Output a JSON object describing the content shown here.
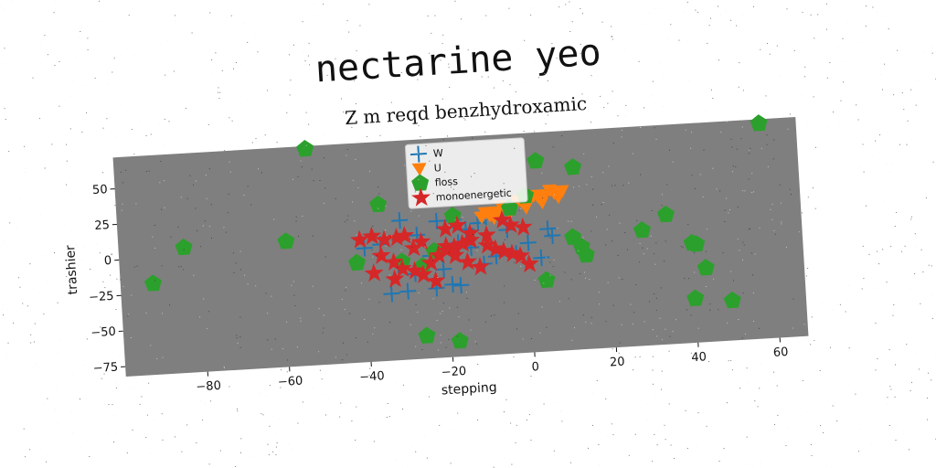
{
  "chart_data": {
    "type": "scatter",
    "suptitle": "nectarine yeo",
    "title": "Z m reqd benzhydroxamic",
    "xlabel": "stepping",
    "ylabel": "trashier",
    "xlim": [
      -100,
      67
    ],
    "ylim": [
      -82,
      72
    ],
    "xticks": [
      -80,
      -60,
      -40,
      -20,
      0,
      20,
      40,
      60
    ],
    "yticks": [
      -75,
      -50,
      -25,
      0,
      25,
      50
    ],
    "grid": false,
    "legend_position": "top-center",
    "background_color": "#7f7f7f",
    "series": [
      {
        "name": "W",
        "marker": "plus",
        "color": "#1f77b4",
        "points": [
          [
            -40,
            -2
          ],
          [
            -36,
            0
          ],
          [
            -31,
            16
          ],
          [
            -32,
            -15
          ],
          [
            -34,
            -35
          ],
          [
            -30,
            -34
          ],
          [
            -23,
            -33
          ],
          [
            -19,
            -31
          ],
          [
            -17,
            -32
          ],
          [
            -22,
            14
          ],
          [
            -18,
            14
          ],
          [
            -15,
            7
          ],
          [
            -17,
            -2
          ],
          [
            -14,
            -6
          ],
          [
            -12,
            11
          ],
          [
            -8,
            -13
          ],
          [
            -5,
            5
          ],
          [
            0,
            -5
          ],
          [
            3,
            -16
          ],
          [
            5,
            4
          ],
          [
            6,
            -1
          ],
          [
            -27,
            5
          ],
          [
            -24,
            -10
          ],
          [
            -21,
            -20
          ],
          [
            -10,
            15
          ],
          [
            -3,
            -12
          ],
          [
            -28,
            -22
          ],
          [
            -11,
            -18
          ]
        ]
      },
      {
        "name": "U",
        "marker": "triangle-down",
        "color": "#ff7f0e",
        "points": [
          [
            -11,
            15
          ],
          [
            -9,
            16
          ],
          [
            -7,
            18
          ],
          [
            -5,
            20
          ],
          [
            -3,
            22
          ],
          [
            -1,
            24
          ],
          [
            1,
            25
          ],
          [
            3,
            27
          ],
          [
            5,
            28
          ],
          [
            7,
            29
          ],
          [
            9,
            30
          ],
          [
            -10,
            18
          ],
          [
            -6,
            22
          ],
          [
            -2,
            25
          ],
          [
            2,
            28
          ],
          [
            6,
            31
          ],
          [
            -8,
            14
          ],
          [
            -4,
            17
          ],
          [
            0,
            20
          ],
          [
            4,
            23
          ],
          [
            8,
            26
          ]
        ]
      },
      {
        "name": "floss",
        "marker": "pentagon",
        "color": "#2ca02c",
        "points": [
          [
            -53,
            70
          ],
          [
            58,
            69
          ],
          [
            -92,
            -18
          ],
          [
            -84,
            6
          ],
          [
            -59,
            6
          ],
          [
            -36,
            28
          ],
          [
            -26,
            -66
          ],
          [
            -18,
            -71
          ],
          [
            -18,
            17
          ],
          [
            -4,
            20
          ],
          [
            0,
            28
          ],
          [
            3,
            52
          ],
          [
            12,
            46
          ],
          [
            11,
            -3
          ],
          [
            13,
            -10
          ],
          [
            14,
            -16
          ],
          [
            28,
            -1
          ],
          [
            34,
            9
          ],
          [
            40,
            -12
          ],
          [
            41,
            -13
          ],
          [
            43,
            -30
          ],
          [
            40,
            -51
          ],
          [
            49,
            -54
          ],
          [
            4,
            -32
          ],
          [
            -42,
            -12
          ],
          [
            -31,
            -13
          ],
          [
            -26,
            -17
          ],
          [
            -23,
            -7
          ]
        ]
      },
      {
        "name": "monoenergetic",
        "marker": "star",
        "color": "#d62728",
        "points": [
          [
            -41,
            4
          ],
          [
            -38,
            6
          ],
          [
            -35,
            3
          ],
          [
            -32,
            4
          ],
          [
            -30,
            5
          ],
          [
            -36,
            -8
          ],
          [
            -33,
            -13
          ],
          [
            -31,
            -18
          ],
          [
            -28,
            -20
          ],
          [
            -26,
            -23
          ],
          [
            -24,
            -15
          ],
          [
            -22,
            -10
          ],
          [
            -20,
            -7
          ],
          [
            -18,
            -5
          ],
          [
            -16,
            -3
          ],
          [
            -14,
            -1
          ],
          [
            -20,
            -4
          ],
          [
            -18,
            -11
          ],
          [
            -15,
            -16
          ],
          [
            -12,
            -20
          ],
          [
            -20,
            8
          ],
          [
            -17,
            10
          ],
          [
            -14,
            4
          ],
          [
            -10,
            -5
          ],
          [
            -8,
            -8
          ],
          [
            -6,
            -10
          ],
          [
            -4,
            -12
          ],
          [
            -2,
            -14
          ],
          [
            0,
            -20
          ],
          [
            -4,
            8
          ],
          [
            -1,
            6
          ],
          [
            -6,
            12
          ],
          [
            -26,
            0
          ],
          [
            -33,
            -25
          ],
          [
            -23,
            -28
          ],
          [
            -38,
            -20
          ],
          [
            -28,
            -4
          ],
          [
            -10,
            2
          ]
        ]
      }
    ]
  }
}
